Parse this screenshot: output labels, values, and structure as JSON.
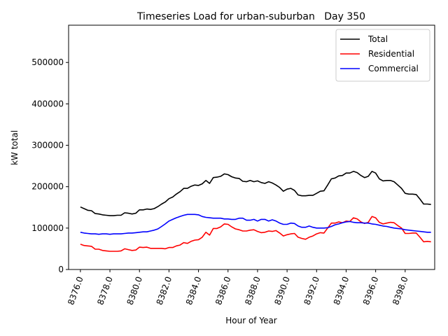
{
  "chart_data": {
    "type": "line",
    "title": "Timeseries Load for urban-suburban   Day 350",
    "xlabel": "Hour of Year",
    "ylabel": "kW total",
    "xlim": [
      8375.2,
      8400.0
    ],
    "ylim": [
      0,
      590000
    ],
    "xticks": [
      8376,
      8378,
      8380,
      8382,
      8384,
      8386,
      8388,
      8390,
      8392,
      8394,
      8396,
      8398
    ],
    "xtick_labels": [
      "8376.0",
      "8378.0",
      "8380.0",
      "8382.0",
      "8384.0",
      "8386.0",
      "8388.0",
      "8390.0",
      "8392.0",
      "8394.0",
      "8396.0",
      "8398.0"
    ],
    "yticks": [
      0,
      100000,
      200000,
      300000,
      400000,
      500000
    ],
    "ytick_labels": [
      "0",
      "100000",
      "200000",
      "300000",
      "400000",
      "500000"
    ],
    "legend_position": "top-right",
    "x": [
      8376.0,
      8376.25,
      8376.5,
      8376.75,
      8377.0,
      8377.25,
      8377.5,
      8377.75,
      8378.0,
      8378.25,
      8378.5,
      8378.75,
      8379.0,
      8379.25,
      8379.5,
      8379.75,
      8380.0,
      8380.25,
      8380.5,
      8380.75,
      8381.0,
      8381.25,
      8381.5,
      8381.75,
      8382.0,
      8382.25,
      8382.5,
      8382.75,
      8383.0,
      8383.25,
      8383.5,
      8383.75,
      8384.0,
      8384.25,
      8384.5,
      8384.75,
      8385.0,
      8385.25,
      8385.5,
      8385.75,
      8386.0,
      8386.25,
      8386.5,
      8386.75,
      8387.0,
      8387.25,
      8387.5,
      8387.75,
      8388.0,
      8388.25,
      8388.5,
      8388.75,
      8389.0,
      8389.25,
      8389.5,
      8389.75,
      8390.0,
      8390.25,
      8390.5,
      8390.75,
      8391.0,
      8391.25,
      8391.5,
      8391.75,
      8392.0,
      8392.25,
      8392.5,
      8392.75,
      8393.0,
      8393.25,
      8393.5,
      8393.75,
      8394.0,
      8394.25,
      8394.5,
      8394.75,
      8395.0,
      8395.25,
      8395.5,
      8395.75,
      8396.0,
      8396.25,
      8396.5,
      8396.75,
      8397.0,
      8397.25,
      8397.5,
      8397.75,
      8398.0,
      8398.25,
      8398.5,
      8398.75,
      8399.0,
      8399.25,
      8399.5,
      8399.75
    ],
    "series": [
      {
        "name": "Total",
        "color": "#000000",
        "values": [
          151000,
          147000,
          143000,
          142000,
          135000,
          134000,
          132000,
          131000,
          130000,
          130000,
          131000,
          131000,
          137000,
          136000,
          134000,
          136000,
          144000,
          144000,
          146000,
          145000,
          147000,
          152000,
          158000,
          163000,
          171000,
          175000,
          182000,
          188000,
          196000,
          196000,
          201000,
          204000,
          203000,
          207000,
          215000,
          208000,
          222000,
          223000,
          225000,
          231000,
          229000,
          224000,
          221000,
          220000,
          213000,
          212000,
          215000,
          212000,
          214000,
          210000,
          208000,
          212000,
          209000,
          204000,
          198000,
          189000,
          194000,
          196000,
          191000,
          180000,
          178000,
          178000,
          179000,
          179000,
          184000,
          189000,
          190000,
          204000,
          219000,
          221000,
          226000,
          227000,
          233000,
          233000,
          237000,
          234000,
          227000,
          222000,
          225000,
          237000,
          233000,
          219000,
          214000,
          215000,
          215000,
          212000,
          204000,
          196000,
          184000,
          182000,
          182000,
          181000,
          170000,
          158000,
          158000,
          157000
        ]
      },
      {
        "name": "Residential",
        "color": "#ff0000",
        "values": [
          61000,
          58000,
          57000,
          56000,
          49000,
          49000,
          46000,
          45000,
          44000,
          44000,
          44000,
          45000,
          50000,
          48000,
          46000,
          47000,
          54000,
          53000,
          54000,
          51000,
          51000,
          51000,
          51000,
          50000,
          53000,
          53000,
          57000,
          59000,
          65000,
          63000,
          68000,
          71000,
          72000,
          78000,
          90000,
          83000,
          99000,
          99000,
          103000,
          110000,
          109000,
          103000,
          98000,
          96000,
          93000,
          93000,
          95000,
          96000,
          92000,
          89000,
          90000,
          93000,
          92000,
          94000,
          88000,
          81000,
          84000,
          86000,
          87000,
          78000,
          75000,
          73000,
          78000,
          81000,
          86000,
          89000,
          88000,
          100000,
          112000,
          112000,
          115000,
          113000,
          117000,
          116000,
          125000,
          122000,
          115000,
          111000,
          114000,
          128000,
          125000,
          114000,
          110000,
          112000,
          114000,
          113000,
          106000,
          100000,
          87000,
          87000,
          88000,
          88000,
          78000,
          67000,
          68000,
          67000
        ]
      },
      {
        "name": "Commercial",
        "color": "#0000ff",
        "values": [
          90000,
          88000,
          87000,
          86000,
          86000,
          85000,
          86000,
          86000,
          85000,
          86000,
          86000,
          86000,
          87000,
          88000,
          88000,
          89000,
          90000,
          91000,
          91000,
          93000,
          95000,
          98000,
          104000,
          110000,
          117000,
          121000,
          125000,
          128000,
          131000,
          133000,
          133000,
          133000,
          132000,
          128000,
          126000,
          125000,
          124000,
          124000,
          124000,
          122000,
          122000,
          121000,
          121000,
          124000,
          124000,
          119000,
          119000,
          121000,
          117000,
          121000,
          121000,
          117000,
          120000,
          117000,
          112000,
          109000,
          109000,
          112000,
          111000,
          105000,
          102000,
          102000,
          105000,
          102000,
          100000,
          100000,
          100000,
          101000,
          104000,
          108000,
          110000,
          113000,
          115000,
          116000,
          114000,
          113000,
          113000,
          112000,
          112000,
          110000,
          109000,
          107000,
          105000,
          104000,
          102000,
          100000,
          99000,
          98000,
          96000,
          95000,
          94000,
          93000,
          92000,
          91000,
          90000,
          90000
        ]
      }
    ]
  }
}
